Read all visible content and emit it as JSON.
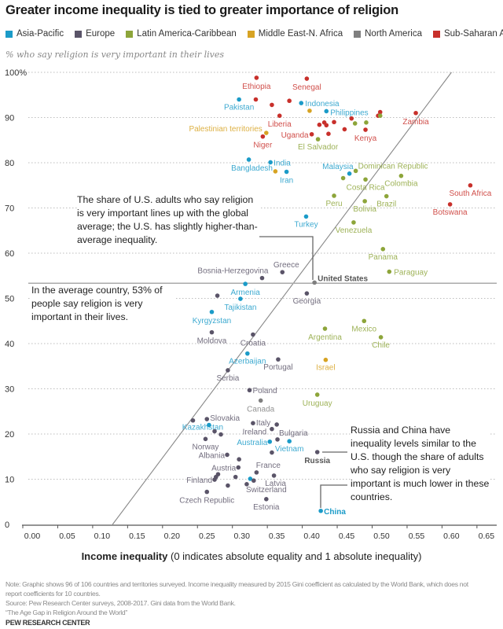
{
  "title": "Greater income inequality is tied to greater importance of religion",
  "subtitle": "% who say religion is very important in their lives",
  "legend": [
    {
      "name": "Asia-Pacific",
      "color": "#1b9bc8"
    },
    {
      "name": "Europe",
      "color": "#5a5468"
    },
    {
      "name": "Latin America-Caribbean",
      "color": "#8da53a"
    },
    {
      "name": "Middle East-N. Africa",
      "color": "#d7a323"
    },
    {
      "name": "North America",
      "color": "#7f7f7f"
    },
    {
      "name": "Sub-Saharan Africa",
      "color": "#c8302b"
    }
  ],
  "annotations": {
    "us": "The share of U.S. adults who say religion is very important lines up with the global average; the U.S. has slightly higher-than-average inequality.",
    "average": "In the average country, 53% of people say religion is very important in their lives.",
    "russia_china": "Russia and China have inequality levels similar to the U.S. though the share of adults who say religion is very important is much lower in these countries."
  },
  "xaxis_title_bold": "Income inequality",
  "xaxis_title_rest": " (0 indicates absolute equality and 1 absolute inequality)",
  "note": "Note: Graphic shows 96 of 106 countries and territories surveyed. Income inequality measured by 2015 Gini coefficient as calculated by the World Bank, which does not report coefficients for 10 countries.",
  "source": "Source: Pew Research Center surveys, 2008-2017. Gini data from the World Bank.",
  "report": "“The Age Gap in Religion Around the World”",
  "brand": "PEW RESEARCH CENTER",
  "chart_data": {
    "type": "scatter",
    "xlabel": "Income inequality (0 indicates absolute equality and 1 absolute inequality)",
    "ylabel": "% who say religion is very important in their lives",
    "xlim": [
      0,
      0.65
    ],
    "ylim": [
      0,
      100
    ],
    "xticks": [
      "0.00",
      "0.05",
      "0.10",
      "0.15",
      "0.20",
      "0.25",
      "0.30",
      "0.35",
      "0.40",
      "0.45",
      "0.50",
      "0.55",
      "0.60",
      "0.65"
    ],
    "yticks": [
      "100%",
      "90",
      "80",
      "70",
      "60",
      "50",
      "40",
      "30",
      "20",
      "10",
      "0"
    ],
    "grid": "horizontal dotted",
    "average_line": 53,
    "trend_line": [
      [
        0.115,
        0
      ],
      [
        0.6,
        100
      ]
    ],
    "points": [
      {
        "label": "Ethiopia",
        "region": "Sub-Saharan Africa",
        "x": 0.321,
        "y": 98.8
      },
      {
        "label": "Senegal",
        "region": "Sub-Saharan Africa",
        "x": 0.393,
        "y": 98.6
      },
      {
        "label": "Pakistan",
        "region": "Asia-Pacific",
        "x": 0.296,
        "y": 94.0
      },
      {
        "label": "",
        "region": "Sub-Saharan Africa",
        "x": 0.32,
        "y": 94.0
      },
      {
        "label": "",
        "region": "Sub-Saharan Africa",
        "x": 0.343,
        "y": 92.8
      },
      {
        "label": "",
        "region": "Sub-Saharan Africa",
        "x": 0.368,
        "y": 93.7
      },
      {
        "label": "Indonesia",
        "region": "Asia-Pacific",
        "x": 0.385,
        "y": 93.2
      },
      {
        "label": "",
        "region": "Middle East-N. Africa",
        "x": 0.397,
        "y": 91.5
      },
      {
        "label": "Philippines",
        "region": "Asia-Pacific",
        "x": 0.421,
        "y": 91.4
      },
      {
        "label": "",
        "region": "Sub-Saharan Africa",
        "x": 0.498,
        "y": 91.2
      },
      {
        "label": "",
        "region": "Sub-Saharan Africa",
        "x": 0.495,
        "y": 90.4
      },
      {
        "label": "",
        "region": "Latin America-Caribbean",
        "x": 0.498,
        "y": 90.4
      },
      {
        "label": "Zambia",
        "region": "Sub-Saharan Africa",
        "x": 0.549,
        "y": 91.0
      },
      {
        "label": "Liberia",
        "region": "Sub-Saharan Africa",
        "x": 0.354,
        "y": 90.4
      },
      {
        "label": "",
        "region": "Sub-Saharan Africa",
        "x": 0.411,
        "y": 88.4
      },
      {
        "label": "",
        "region": "Sub-Saharan Africa",
        "x": 0.418,
        "y": 88.9
      },
      {
        "label": "",
        "region": "Sub-Saharan Africa",
        "x": 0.421,
        "y": 88.3
      },
      {
        "label": "",
        "region": "Sub-Saharan Africa",
        "x": 0.432,
        "y": 89.0
      },
      {
        "label": "",
        "region": "Sub-Saharan Africa",
        "x": 0.447,
        "y": 87.4
      },
      {
        "label": "",
        "region": "Sub-Saharan Africa",
        "x": 0.457,
        "y": 89.8
      },
      {
        "label": "Kenya",
        "region": "Sub-Saharan Africa",
        "x": 0.477,
        "y": 87.3
      },
      {
        "label": "",
        "region": "Sub-Saharan Africa",
        "x": 0.424,
        "y": 86.4
      },
      {
        "label": "Uganda",
        "region": "Sub-Saharan Africa",
        "x": 0.4,
        "y": 86.3
      },
      {
        "label": "",
        "region": "Latin America-Caribbean",
        "x": 0.462,
        "y": 88.7
      },
      {
        "label": "",
        "region": "Latin America-Caribbean",
        "x": 0.478,
        "y": 88.9
      },
      {
        "label": "El Salvador",
        "region": "Latin America-Caribbean",
        "x": 0.409,
        "y": 85.2
      },
      {
        "label": "Palestinian territories",
        "region": "Middle East-N. Africa",
        "x": 0.335,
        "y": 86.6
      },
      {
        "label": "Niger",
        "region": "Sub-Saharan Africa",
        "x": 0.33,
        "y": 85.8
      },
      {
        "label": "Bangladesh",
        "region": "Asia-Pacific",
        "x": 0.31,
        "y": 80.7
      },
      {
        "label": "India",
        "region": "Asia-Pacific",
        "x": 0.341,
        "y": 80.1
      },
      {
        "label": "",
        "region": "Middle East-N. Africa",
        "x": 0.348,
        "y": 78.1
      },
      {
        "label": "Iran",
        "region": "Asia-Pacific",
        "x": 0.364,
        "y": 78.0
      },
      {
        "label": "Malaysia",
        "region": "Asia-Pacific",
        "x": 0.454,
        "y": 77.6
      },
      {
        "label": "Dominican Republic",
        "region": "Latin America-Caribbean",
        "x": 0.463,
        "y": 78.2
      },
      {
        "label": "",
        "region": "Latin America-Caribbean",
        "x": 0.445,
        "y": 76.6
      },
      {
        "label": "Costa Rica",
        "region": "Latin America-Caribbean",
        "x": 0.477,
        "y": 76.3
      },
      {
        "label": "Colombia",
        "region": "Latin America-Caribbean",
        "x": 0.528,
        "y": 77.1
      },
      {
        "label": "Peru",
        "region": "Latin America-Caribbean",
        "x": 0.432,
        "y": 72.7
      },
      {
        "label": "Bolivia",
        "region": "Latin America-Caribbean",
        "x": 0.476,
        "y": 71.5
      },
      {
        "label": "Brazil",
        "region": "Latin America-Caribbean",
        "x": 0.507,
        "y": 72.6
      },
      {
        "label": "South Africa",
        "region": "Sub-Saharan Africa",
        "x": 0.627,
        "y": 75.0
      },
      {
        "label": "Botswana",
        "region": "Sub-Saharan Africa",
        "x": 0.598,
        "y": 70.8
      },
      {
        "label": "Turkey",
        "region": "Asia-Pacific",
        "x": 0.392,
        "y": 68.1
      },
      {
        "label": "Venezuela",
        "region": "Latin America-Caribbean",
        "x": 0.46,
        "y": 66.8
      },
      {
        "label": "Panama",
        "region": "Latin America-Caribbean",
        "x": 0.502,
        "y": 60.9
      },
      {
        "label": "Paraguay",
        "region": "Latin America-Caribbean",
        "x": 0.511,
        "y": 55.9
      },
      {
        "label": "Greece",
        "region": "Europe",
        "x": 0.358,
        "y": 55.8
      },
      {
        "label": "Bosnia-Herzegovina",
        "region": "Europe",
        "x": 0.329,
        "y": 54.5
      },
      {
        "label": "United States",
        "region": "North America",
        "x": 0.404,
        "y": 53.5
      },
      {
        "label": "Armenia",
        "region": "Asia-Pacific",
        "x": 0.305,
        "y": 53.2
      },
      {
        "label": "",
        "region": "Europe",
        "x": 0.265,
        "y": 50.6
      },
      {
        "label": "Tajikistan",
        "region": "Asia-Pacific",
        "x": 0.298,
        "y": 49.9
      },
      {
        "label": "Georgia",
        "region": "Europe",
        "x": 0.393,
        "y": 51.1
      },
      {
        "label": "Kyrgyzstan",
        "region": "Asia-Pacific",
        "x": 0.257,
        "y": 47.0
      },
      {
        "label": "Moldova",
        "region": "Europe",
        "x": 0.257,
        "y": 42.5
      },
      {
        "label": "Croatia",
        "region": "Europe",
        "x": 0.316,
        "y": 42.0
      },
      {
        "label": "Argentina",
        "region": "Latin America-Caribbean",
        "x": 0.419,
        "y": 43.3
      },
      {
        "label": "Mexico",
        "region": "Latin America-Caribbean",
        "x": 0.475,
        "y": 45.0
      },
      {
        "label": "Chile",
        "region": "Latin America-Caribbean",
        "x": 0.499,
        "y": 41.4
      },
      {
        "label": "Azerbaijan",
        "region": "Asia-Pacific",
        "x": 0.308,
        "y": 37.8
      },
      {
        "label": "Portugal",
        "region": "Europe",
        "x": 0.352,
        "y": 36.5
      },
      {
        "label": "Israel",
        "region": "Middle East-N. Africa",
        "x": 0.42,
        "y": 36.4
      },
      {
        "label": "Serbia",
        "region": "Europe",
        "x": 0.28,
        "y": 34.1
      },
      {
        "label": "Poland",
        "region": "Europe",
        "x": 0.311,
        "y": 29.7
      },
      {
        "label": "Uruguay",
        "region": "Latin America-Caribbean",
        "x": 0.408,
        "y": 28.7
      },
      {
        "label": "Canada",
        "region": "North America",
        "x": 0.327,
        "y": 27.4
      },
      {
        "label": "",
        "region": "Europe",
        "x": 0.23,
        "y": 23.0
      },
      {
        "label": "Slovakia",
        "region": "Europe",
        "x": 0.25,
        "y": 23.3
      },
      {
        "label": "Kazakhstan",
        "region": "Asia-Pacific",
        "x": 0.253,
        "y": 22.0
      },
      {
        "label": "",
        "region": "Europe",
        "x": 0.261,
        "y": 20.6
      },
      {
        "label": "",
        "region": "Europe",
        "x": 0.27,
        "y": 19.9
      },
      {
        "label": "Norway",
        "region": "Europe",
        "x": 0.248,
        "y": 18.9
      },
      {
        "label": "Italy",
        "region": "Europe",
        "x": 0.316,
        "y": 22.4
      },
      {
        "label": "",
        "region": "Europe",
        "x": 0.35,
        "y": 22.1
      },
      {
        "label": "Ireland",
        "region": "Europe",
        "x": 0.343,
        "y": 21.1
      },
      {
        "label": "Bulgaria",
        "region": "Europe",
        "x": 0.351,
        "y": 18.8
      },
      {
        "label": "Australia",
        "region": "Asia-Pacific",
        "x": 0.34,
        "y": 18.3
      },
      {
        "label": "Vietnam",
        "region": "Asia-Pacific",
        "x": 0.368,
        "y": 18.4
      },
      {
        "label": "Russia",
        "region": "Europe",
        "x": 0.408,
        "y": 16.0
      },
      {
        "label": "",
        "region": "Europe",
        "x": 0.343,
        "y": 15.9
      },
      {
        "label": "Albania",
        "region": "Europe",
        "x": 0.279,
        "y": 15.4
      },
      {
        "label": "",
        "region": "Europe",
        "x": 0.296,
        "y": 14.4
      },
      {
        "label": "Austria",
        "region": "Europe",
        "x": 0.295,
        "y": 12.6
      },
      {
        "label": "France",
        "region": "Europe",
        "x": 0.321,
        "y": 11.5
      },
      {
        "label": "",
        "region": "Europe",
        "x": 0.266,
        "y": 11.1
      },
      {
        "label": "",
        "region": "Europe",
        "x": 0.263,
        "y": 10.5
      },
      {
        "label": "Finland",
        "region": "Europe",
        "x": 0.261,
        "y": 9.9
      },
      {
        "label": "",
        "region": "Europe",
        "x": 0.291,
        "y": 10.5
      },
      {
        "label": "",
        "region": "Asia-Pacific",
        "x": 0.312,
        "y": 10.1
      },
      {
        "label": "Switzerland",
        "region": "Europe",
        "x": 0.317,
        "y": 9.7
      },
      {
        "label": "Latvia",
        "region": "Europe",
        "x": 0.346,
        "y": 10.8
      },
      {
        "label": "",
        "region": "Europe",
        "x": 0.28,
        "y": 8.6
      },
      {
        "label": "",
        "region": "Europe",
        "x": 0.307,
        "y": 8.9
      },
      {
        "label": "Czech Republic",
        "region": "Europe",
        "x": 0.25,
        "y": 7.2
      },
      {
        "label": "Estonia",
        "region": "Europe",
        "x": 0.335,
        "y": 5.6
      },
      {
        "label": "China",
        "region": "Asia-Pacific",
        "x": 0.413,
        "y": 3.0
      }
    ]
  }
}
